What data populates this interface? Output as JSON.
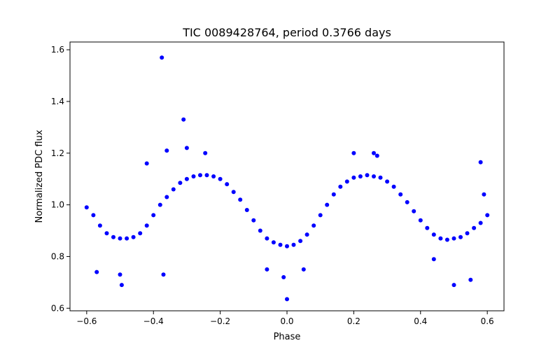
{
  "chart_data": {
    "type": "scatter",
    "title": "TIC 0089428764, period 0.3766 days",
    "xlabel": "Phase",
    "ylabel": "Normalized PDC flux",
    "xlim": [
      -0.65,
      0.65
    ],
    "ylim": [
      0.59,
      1.63
    ],
    "xticks": [
      -0.6,
      -0.4,
      -0.2,
      0.0,
      0.2,
      0.4,
      0.6
    ],
    "xtick_labels": [
      "−0.6",
      "−0.4",
      "−0.2",
      "0.0",
      "0.2",
      "0.4",
      "0.6"
    ],
    "yticks": [
      0.6,
      0.8,
      1.0,
      1.2,
      1.4,
      1.6
    ],
    "ytick_labels": [
      "0.6",
      "0.8",
      "1.0",
      "1.2",
      "1.4",
      "1.6"
    ],
    "grid": false,
    "legend": "none",
    "marker_color": "#0000ff",
    "series": [
      {
        "x": [
          -0.6,
          -0.58,
          -0.56,
          -0.54,
          -0.52,
          -0.5,
          -0.48,
          -0.46,
          -0.44,
          -0.42,
          -0.4,
          -0.38,
          -0.36,
          -0.34,
          -0.32,
          -0.3,
          -0.28,
          -0.26,
          -0.24,
          -0.22,
          -0.2,
          -0.18,
          -0.16,
          -0.14,
          -0.12,
          -0.1,
          -0.08,
          -0.06,
          -0.04,
          -0.02,
          0.0,
          0.02,
          0.04,
          0.06,
          0.08,
          0.1,
          0.12,
          0.14,
          0.16,
          0.18,
          0.2,
          0.22,
          0.24,
          0.26,
          0.28,
          0.3,
          0.32,
          0.34,
          0.36,
          0.38,
          0.4,
          0.42,
          0.44,
          0.46,
          0.48,
          0.5,
          0.52,
          0.54,
          0.56,
          0.58,
          0.6,
          -0.375,
          -0.31,
          -0.3,
          -0.36,
          -0.245,
          -0.42,
          -0.495,
          -0.37,
          0.0,
          -0.01,
          0.26,
          0.58,
          0.2,
          0.27,
          0.5,
          -0.57,
          -0.5,
          0.55,
          -0.06,
          0.05,
          0.44,
          0.59
        ],
        "y": [
          0.99,
          0.96,
          0.92,
          0.89,
          0.875,
          0.87,
          0.87,
          0.875,
          0.89,
          0.92,
          0.96,
          1.0,
          1.03,
          1.06,
          1.085,
          1.1,
          1.11,
          1.115,
          1.115,
          1.11,
          1.1,
          1.08,
          1.05,
          1.02,
          0.98,
          0.94,
          0.9,
          0.87,
          0.855,
          0.845,
          0.84,
          0.845,
          0.86,
          0.885,
          0.92,
          0.96,
          1.0,
          1.04,
          1.07,
          1.09,
          1.105,
          1.11,
          1.115,
          1.11,
          1.105,
          1.09,
          1.07,
          1.04,
          1.01,
          0.975,
          0.94,
          0.91,
          0.885,
          0.87,
          0.865,
          0.87,
          0.875,
          0.89,
          0.91,
          0.93,
          0.96,
          1.57,
          1.33,
          1.22,
          1.21,
          1.2,
          1.16,
          0.69,
          0.73,
          0.635,
          0.72,
          1.2,
          1.165,
          1.2,
          1.19,
          0.69,
          0.74,
          0.73,
          0.71,
          0.75,
          0.75,
          0.79,
          1.04
        ]
      }
    ]
  }
}
